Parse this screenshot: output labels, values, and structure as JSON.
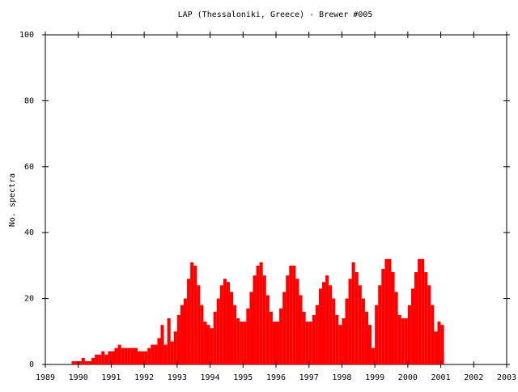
{
  "chart_data": {
    "type": "bar",
    "title": "LAP (Thessaloniki, Greece) - Brewer #005",
    "ylabel": "No. spectra",
    "color": "#ff0000",
    "x": [
      1989.8,
      1989.9,
      1990.0,
      1990.1,
      1990.2,
      1990.3,
      1990.4,
      1990.5,
      1990.6,
      1990.7,
      1990.8,
      1990.9,
      1991.0,
      1991.1,
      1991.2,
      1991.3,
      1991.4,
      1991.5,
      1991.6,
      1991.7,
      1991.8,
      1991.9,
      1992.0,
      1992.1,
      1992.2,
      1992.3,
      1992.4,
      1992.5,
      1992.6,
      1992.7,
      1992.8,
      1992.9,
      1993.0,
      1993.1,
      1993.2,
      1993.3,
      1993.4,
      1993.5,
      1993.6,
      1993.7,
      1993.8,
      1993.9,
      1994.0,
      1994.1,
      1994.2,
      1994.3,
      1994.4,
      1994.5,
      1994.6,
      1994.7,
      1994.8,
      1994.9,
      1995.0,
      1995.1,
      1995.2,
      1995.3,
      1995.4,
      1995.5,
      1995.6,
      1995.7,
      1995.8,
      1995.9,
      1996.0,
      1996.1,
      1996.2,
      1996.3,
      1996.4,
      1996.5,
      1996.6,
      1996.7,
      1996.8,
      1996.9,
      1997.0,
      1997.1,
      1997.2,
      1997.3,
      1997.4,
      1997.5,
      1997.6,
      1997.7,
      1997.8,
      1997.9,
      1998.0,
      1998.1,
      1998.2,
      1998.3,
      1998.4,
      1998.5,
      1998.6,
      1998.7,
      1998.8,
      1998.9,
      1999.0,
      1999.1,
      1999.2,
      1999.3,
      1999.4,
      1999.5,
      1999.6,
      1999.7,
      1999.8,
      1999.9,
      2000.0,
      2000.1,
      2000.2,
      2000.3,
      2000.4,
      2000.5,
      2000.6,
      2000.7,
      2000.8,
      2000.9,
      2001.0
    ],
    "values": [
      1,
      1,
      1,
      2,
      1,
      1,
      2,
      3,
      3,
      4,
      3,
      4,
      4,
      5,
      6,
      5,
      5,
      5,
      5,
      5,
      4,
      4,
      4,
      5,
      6,
      6,
      8,
      12,
      6,
      14,
      7,
      10,
      15,
      18,
      20,
      26,
      31,
      30,
      24,
      18,
      13,
      12,
      11,
      16,
      20,
      24,
      26,
      25,
      22,
      18,
      14,
      13,
      13,
      17,
      22,
      27,
      30,
      31,
      27,
      21,
      16,
      13,
      13,
      17,
      22,
      27,
      30,
      30,
      26,
      21,
      16,
      13,
      13,
      15,
      18,
      23,
      25,
      27,
      24,
      20,
      15,
      12,
      14,
      20,
      26,
      31,
      28,
      24,
      20,
      16,
      12,
      5,
      18,
      24,
      29,
      32,
      32,
      28,
      22,
      15,
      14,
      14,
      18,
      23,
      28,
      32,
      32,
      28,
      24,
      18,
      10,
      13,
      12
    ],
    "xlim": [
      1989,
      2003
    ],
    "xticks": [
      1989,
      1990,
      1991,
      1992,
      1993,
      1994,
      1995,
      1996,
      1997,
      1998,
      1999,
      2000,
      2001,
      2002,
      2003
    ],
    "ylim": [
      0,
      100
    ],
    "yticks": [
      0,
      20,
      40,
      60,
      80,
      100
    ]
  }
}
